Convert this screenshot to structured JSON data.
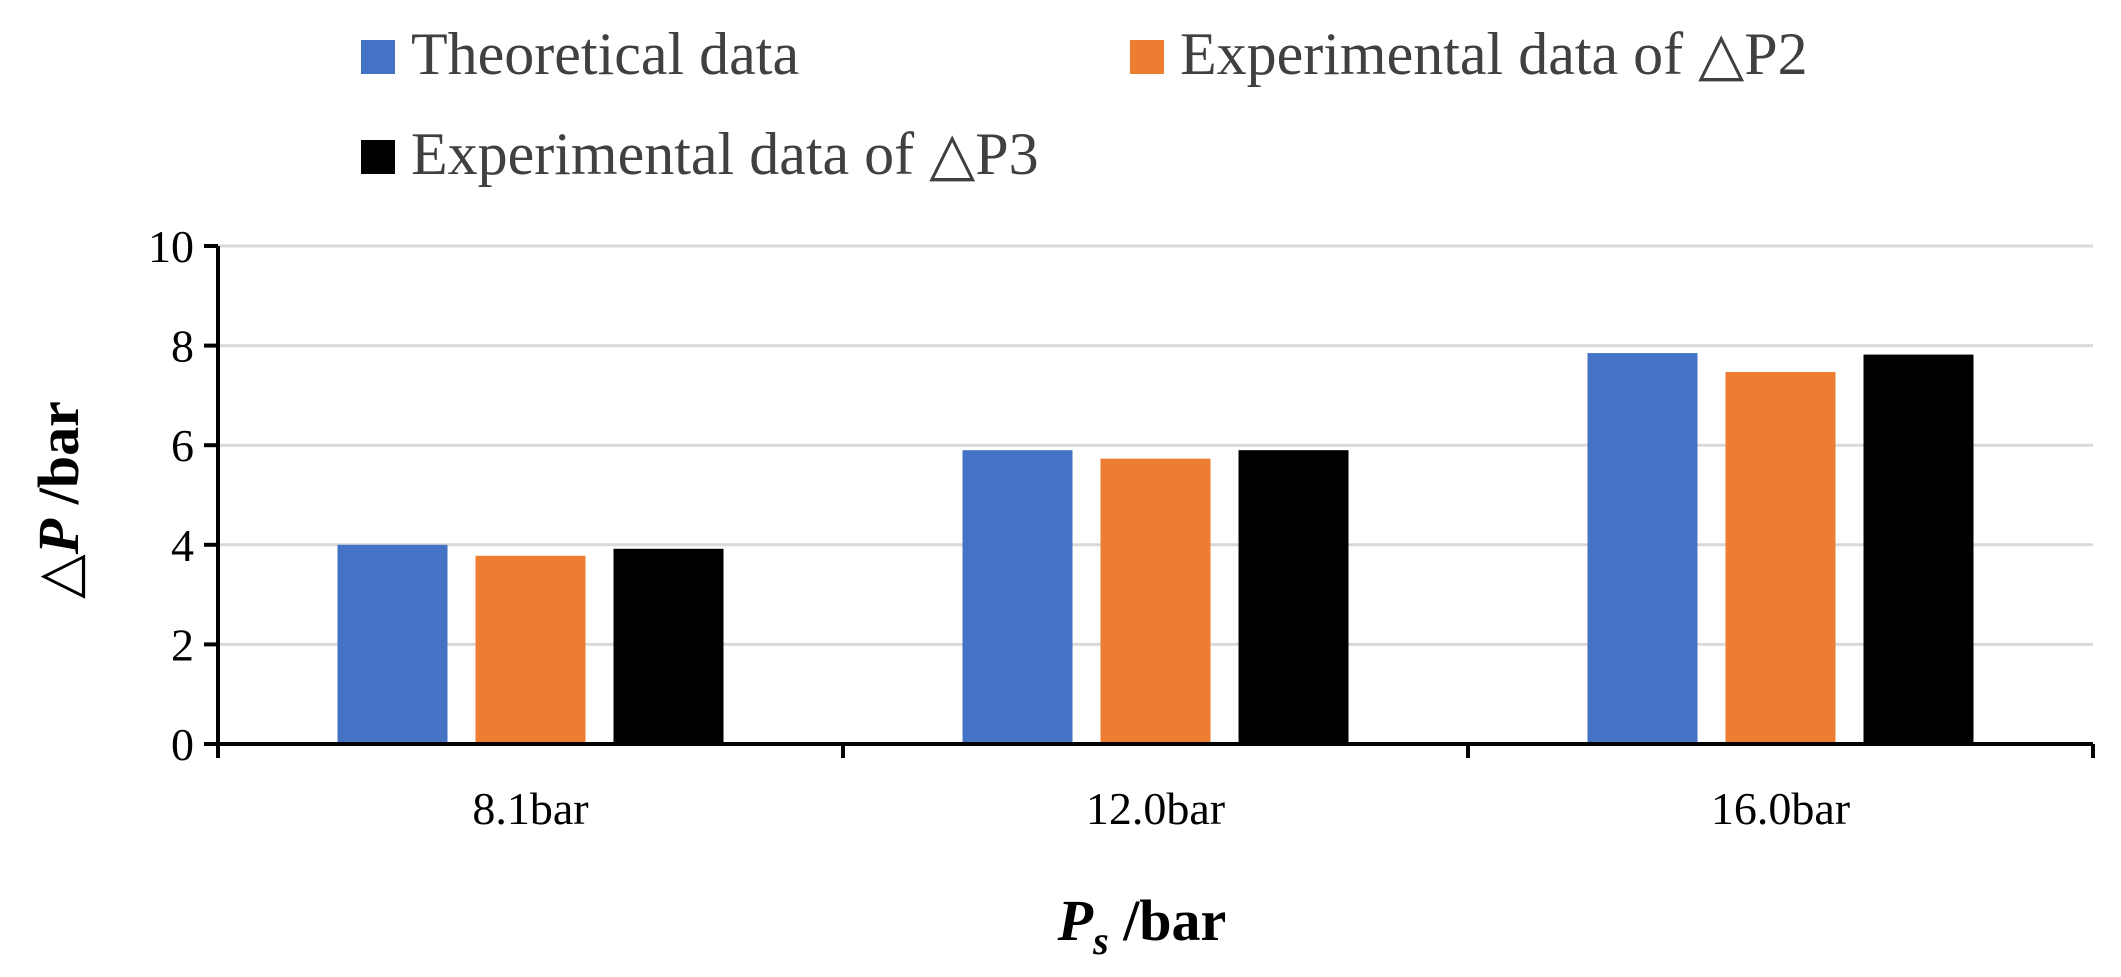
{
  "chart_data": {
    "type": "bar",
    "categories": [
      "8.1bar",
      "12.0bar",
      "16.0bar"
    ],
    "series": [
      {
        "name": "Theoretical data",
        "color": "#4472C4",
        "values": [
          4.0,
          5.9,
          7.85
        ]
      },
      {
        "name": "Experimental data of △P2",
        "color": "#ED7D31",
        "values": [
          3.78,
          5.73,
          7.47
        ]
      },
      {
        "name": "Experimental data of △P3",
        "color": "#000000",
        "values": [
          3.92,
          5.9,
          7.82
        ]
      }
    ],
    "xlabel": {
      "var": "P",
      "sub": "s",
      "unit": " /bar"
    },
    "ylabel": {
      "delta": "△",
      "var": "P",
      "unit": " /bar"
    },
    "ylim": [
      0,
      10
    ],
    "yticks": [
      "0",
      "2",
      "4",
      "6",
      "8",
      "10"
    ],
    "grid": true,
    "legend_position": "top"
  }
}
